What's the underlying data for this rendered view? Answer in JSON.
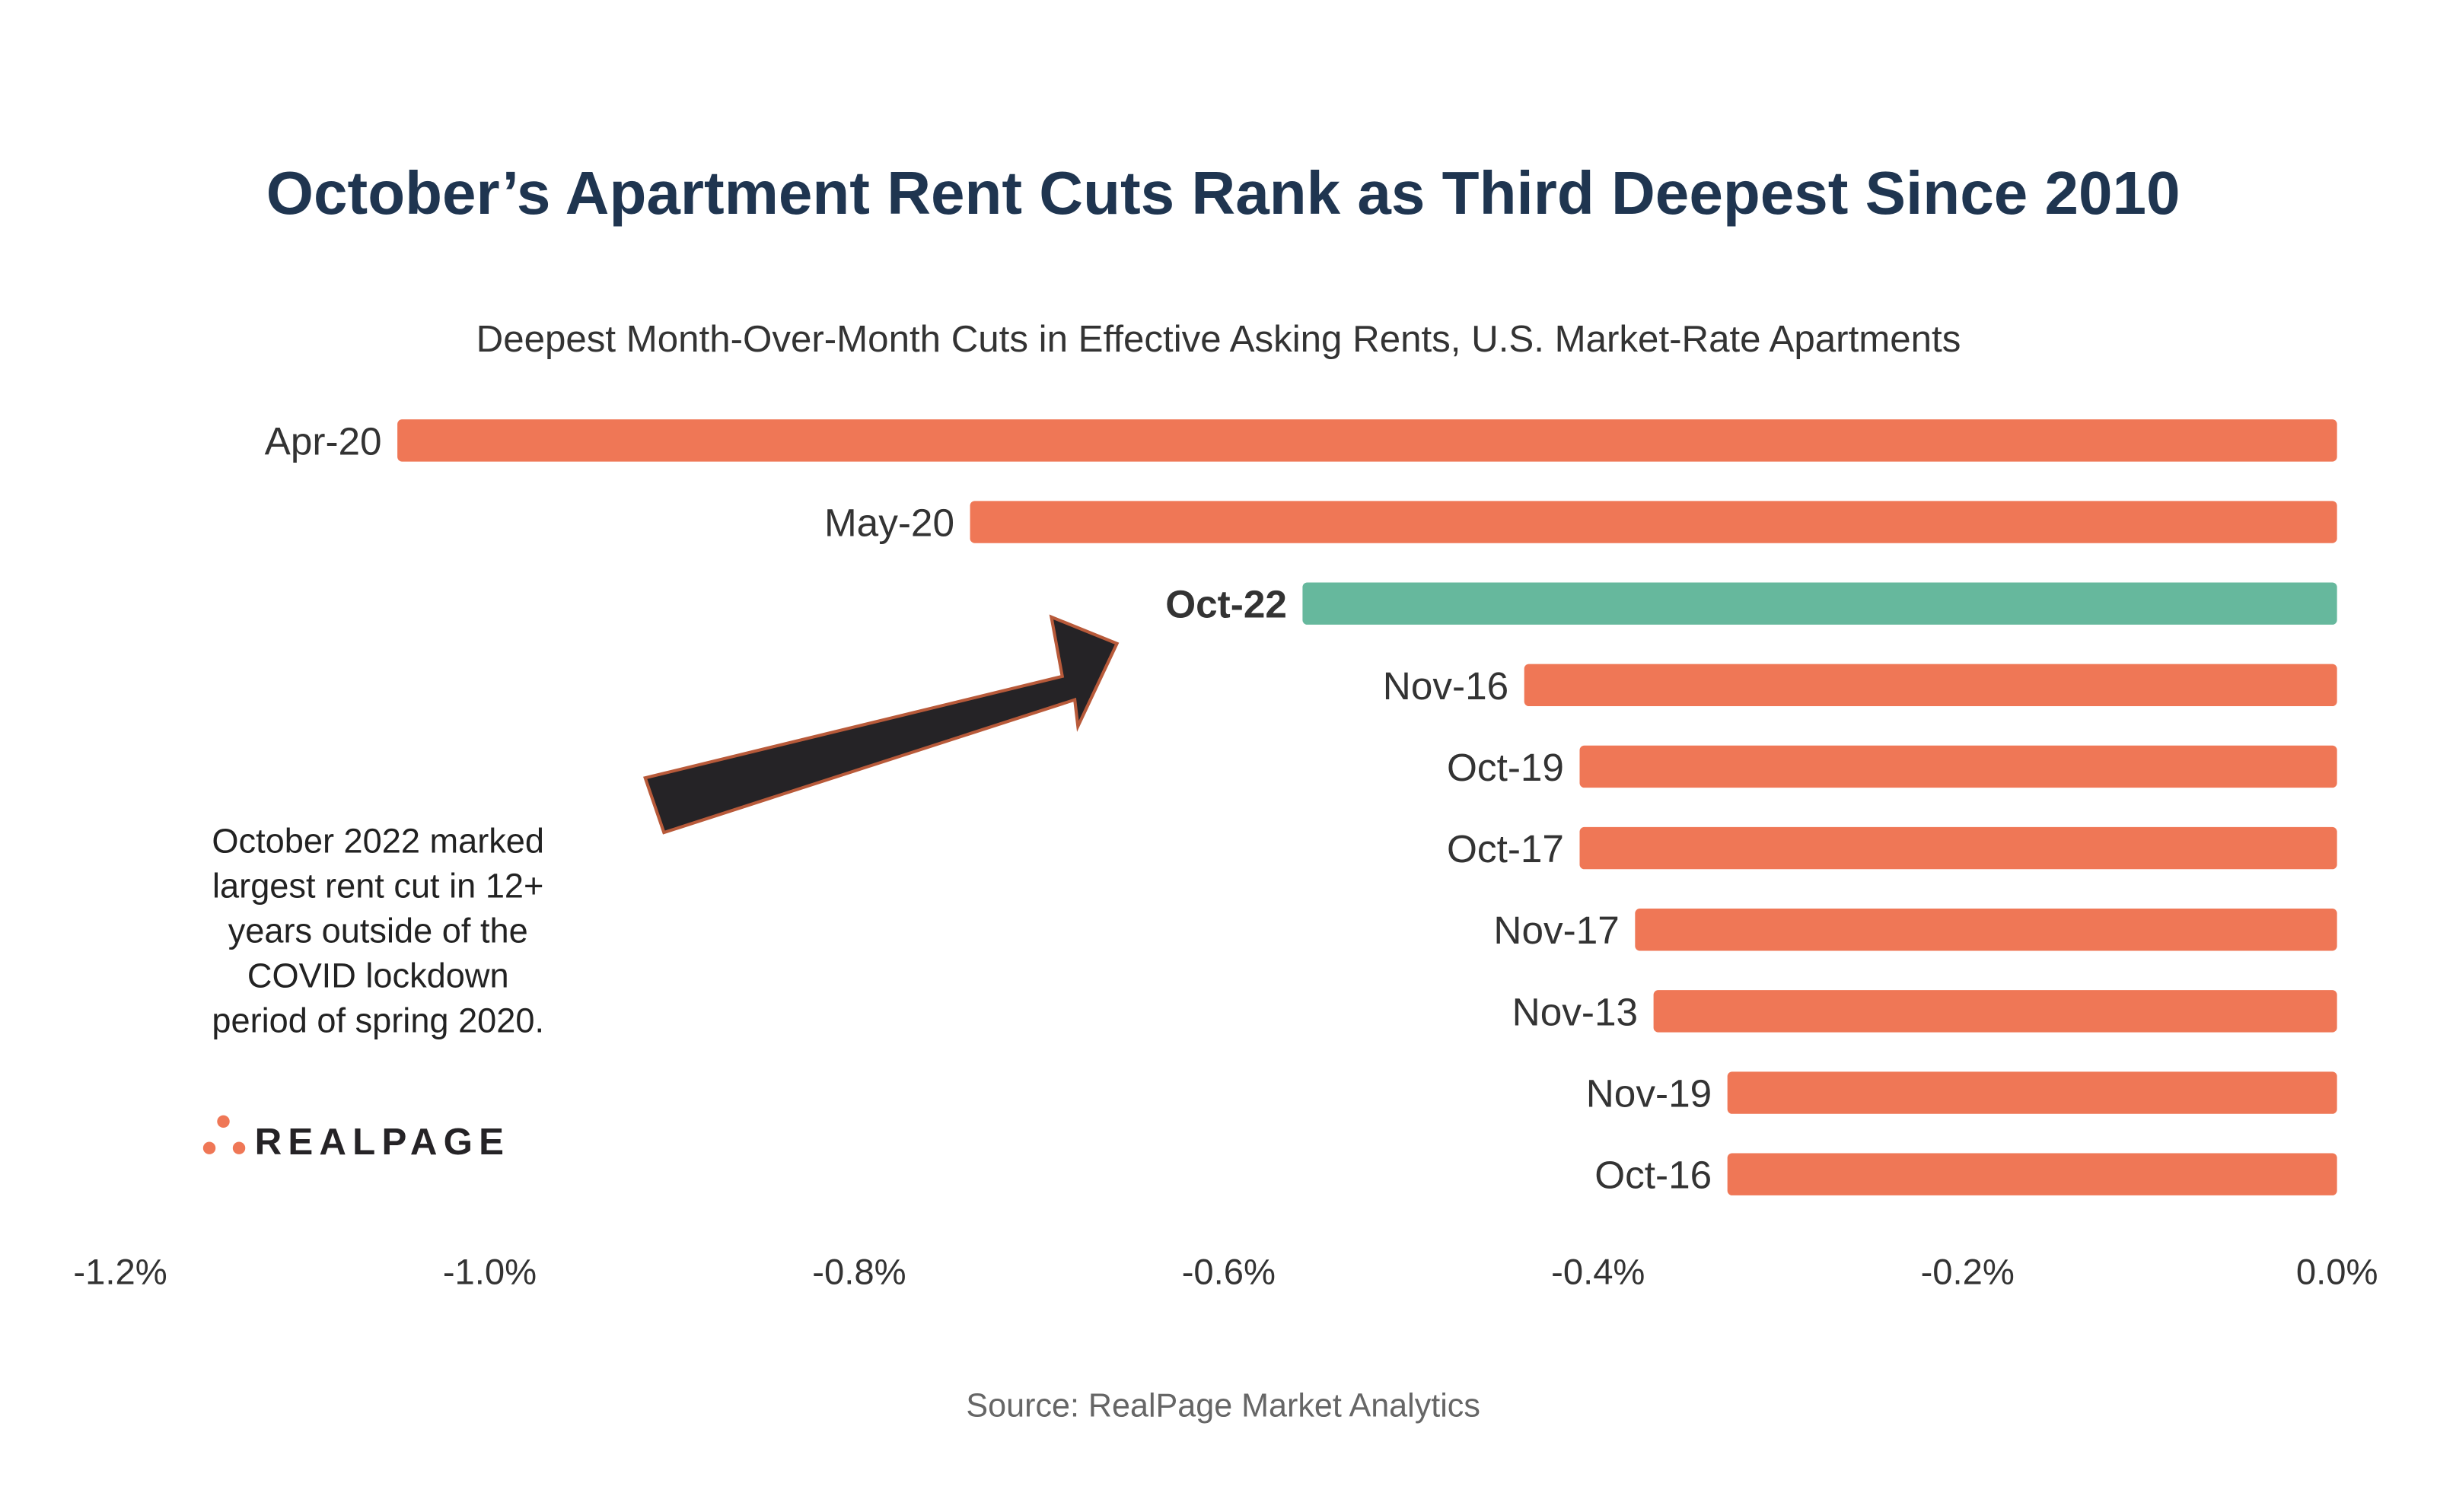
{
  "chart_data": {
    "type": "bar",
    "orientation": "horizontal",
    "title": "October’s Apartment Rent Cuts Rank as Third Deepest Since 2010",
    "subtitle": "Deepest Month-Over-Month Cuts in Effective Asking Rents, U.S. Market-Rate Apartments",
    "categories": [
      "Apr-20",
      "May-20",
      "Oct-22",
      "Nov-16",
      "Oct-19",
      "Oct-17",
      "Nov-17",
      "Nov-13",
      "Nov-19",
      "Oct-16"
    ],
    "values": [
      -1.05,
      -0.74,
      -0.56,
      -0.44,
      -0.41,
      -0.41,
      -0.38,
      -0.37,
      -0.33,
      -0.33
    ],
    "highlight": "Oct-22",
    "xlim": [
      -1.2,
      0.0
    ],
    "xticks": [
      -1.2,
      -1.0,
      -0.8,
      -0.6,
      -0.4,
      -0.2,
      0.0
    ],
    "xtick_labels": [
      "-1.2%",
      "-1.0%",
      "-0.8%",
      "-0.6%",
      "-0.4%",
      "-0.2%",
      "0.0%"
    ],
    "grid": false,
    "colors": {
      "bar": "#ef7756",
      "highlight": "#66b89d",
      "title": "#1f3550",
      "arrow": "#252326",
      "arrow_outline": "#b85a3a"
    },
    "annotation": [
      "October 2022 marked",
      "largest rent cut in 12+",
      "years outside of the",
      "COVID lockdown",
      "period of spring 2020."
    ],
    "source": "Source: RealPage Market Analytics"
  },
  "logo": {
    "text": "REALPAGE",
    "color": "#ef7756"
  }
}
